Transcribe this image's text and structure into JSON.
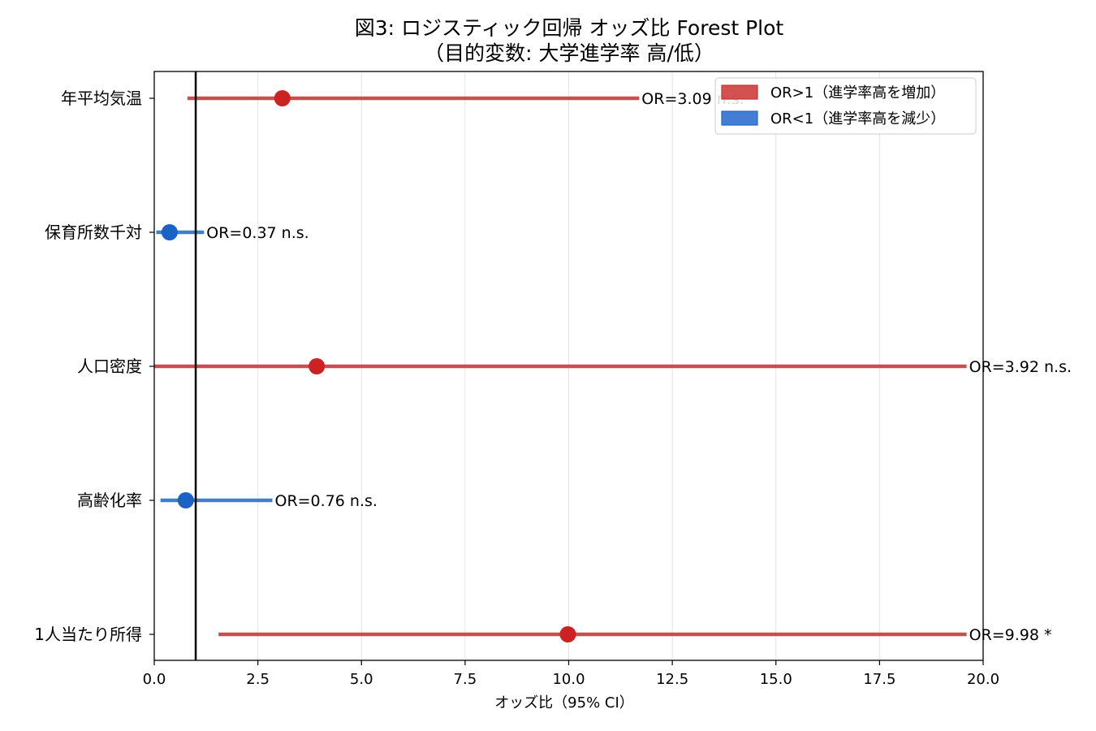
{
  "chart_data": {
    "type": "forest",
    "title": "図3: ロジスティック回帰 オッズ比 Forest Plot",
    "subtitle": "（目的変数: 大学進学率 高/低）",
    "xlabel": "オッズ比（95% CI）",
    "xlim": [
      0,
      20
    ],
    "xticks": [
      "0.0",
      "2.5",
      "5.0",
      "7.5",
      "10.0",
      "12.5",
      "15.0",
      "17.5",
      "20.0"
    ],
    "reference_line": 1,
    "grid": "vertical",
    "legend_position": "top-right",
    "legend": [
      {
        "label": "OR>1（進学率高を増加）",
        "color": "#cc3333"
      },
      {
        "label": "OR<1（進学率高を減少）",
        "color": "#2266cc"
      }
    ],
    "rows": [
      {
        "label": "年平均気温",
        "or": 3.09,
        "ci_low": 0.8,
        "ci_high": 11.7,
        "annotation": "OR=3.09 n.s.",
        "direction": "up"
      },
      {
        "label": "保育所数千対",
        "or": 0.37,
        "ci_low": 0.05,
        "ci_high": 1.2,
        "annotation": "OR=0.37 n.s.",
        "direction": "down"
      },
      {
        "label": "人口密度",
        "or": 3.92,
        "ci_low": 0.0,
        "ci_high": 19.6,
        "annotation": "OR=3.92 n.s.",
        "direction": "up"
      },
      {
        "label": "高齢化率",
        "or": 0.76,
        "ci_low": 0.15,
        "ci_high": 2.85,
        "annotation": "OR=0.76 n.s.",
        "direction": "down"
      },
      {
        "label": "1人当たり所得",
        "or": 9.98,
        "ci_low": 1.55,
        "ci_high": 19.6,
        "annotation": "OR=9.98 *",
        "direction": "up"
      }
    ]
  },
  "colors": {
    "up_line": "#cc4d4d",
    "up_point": "#cc2222",
    "down_line": "#3a7fd0",
    "down_point": "#1a62c4",
    "grid": "#e4e4e4",
    "reference": "#000000"
  }
}
